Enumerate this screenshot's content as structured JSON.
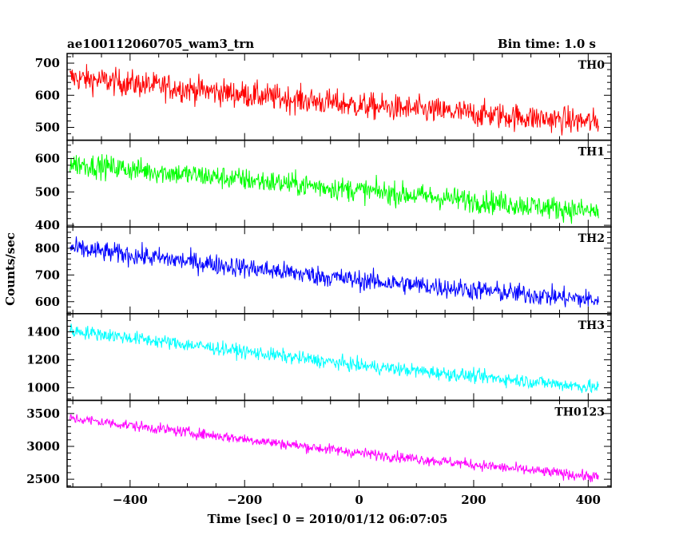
{
  "header": {
    "title": "ae100112060705_wam3_trn",
    "bin_time": "Bin time: 1.0 s"
  },
  "chart_data": {
    "type": "line",
    "xlabel": "Time [sec] 0 = 2010/01/12 06:07:05",
    "ylabel": "Counts/sec",
    "xlim": [
      -510,
      440
    ],
    "x_ticks": [
      -400,
      -200,
      0,
      200,
      400
    ],
    "x_start": -505,
    "x_end": 418,
    "bin": 1.0,
    "panels": [
      {
        "name": "TH0",
        "color": "#ff0000",
        "ylim": [
          460,
          730
        ],
        "y_ticks": [
          500,
          600,
          700
        ],
        "trend": [
          {
            "x": -505,
            "y": 655
          },
          {
            "x": 0,
            "y": 568
          },
          {
            "x": 418,
            "y": 515
          }
        ],
        "noise_amplitude": 38
      },
      {
        "name": "TH1",
        "color": "#00ff00",
        "ylim": [
          395,
          655
        ],
        "y_ticks": [
          400,
          500,
          600
        ],
        "trend": [
          {
            "x": -505,
            "y": 585
          },
          {
            "x": 0,
            "y": 505
          },
          {
            "x": 418,
            "y": 440
          }
        ],
        "noise_amplitude": 32
      },
      {
        "name": "TH2",
        "color": "#0000ff",
        "ylim": [
          555,
          880
        ],
        "y_ticks": [
          600,
          700,
          800
        ],
        "trend": [
          {
            "x": -505,
            "y": 800
          },
          {
            "x": 0,
            "y": 680
          },
          {
            "x": 418,
            "y": 605
          }
        ],
        "noise_amplitude": 35
      },
      {
        "name": "TH3",
        "color": "#00ffff",
        "ylim": [
          910,
          1530
        ],
        "y_ticks": [
          1000,
          1200,
          1400
        ],
        "trend": [
          {
            "x": -505,
            "y": 1410
          },
          {
            "x": 0,
            "y": 1160
          },
          {
            "x": 418,
            "y": 1000
          }
        ],
        "noise_amplitude": 45
      },
      {
        "name": "TH0123",
        "color": "#ff00ff",
        "ylim": [
          2380,
          3700
        ],
        "y_ticks": [
          2500,
          3000,
          3500
        ],
        "trend": [
          {
            "x": -505,
            "y": 3430
          },
          {
            "x": 0,
            "y": 2900
          },
          {
            "x": 418,
            "y": 2530
          }
        ],
        "noise_amplitude": 75
      }
    ]
  }
}
